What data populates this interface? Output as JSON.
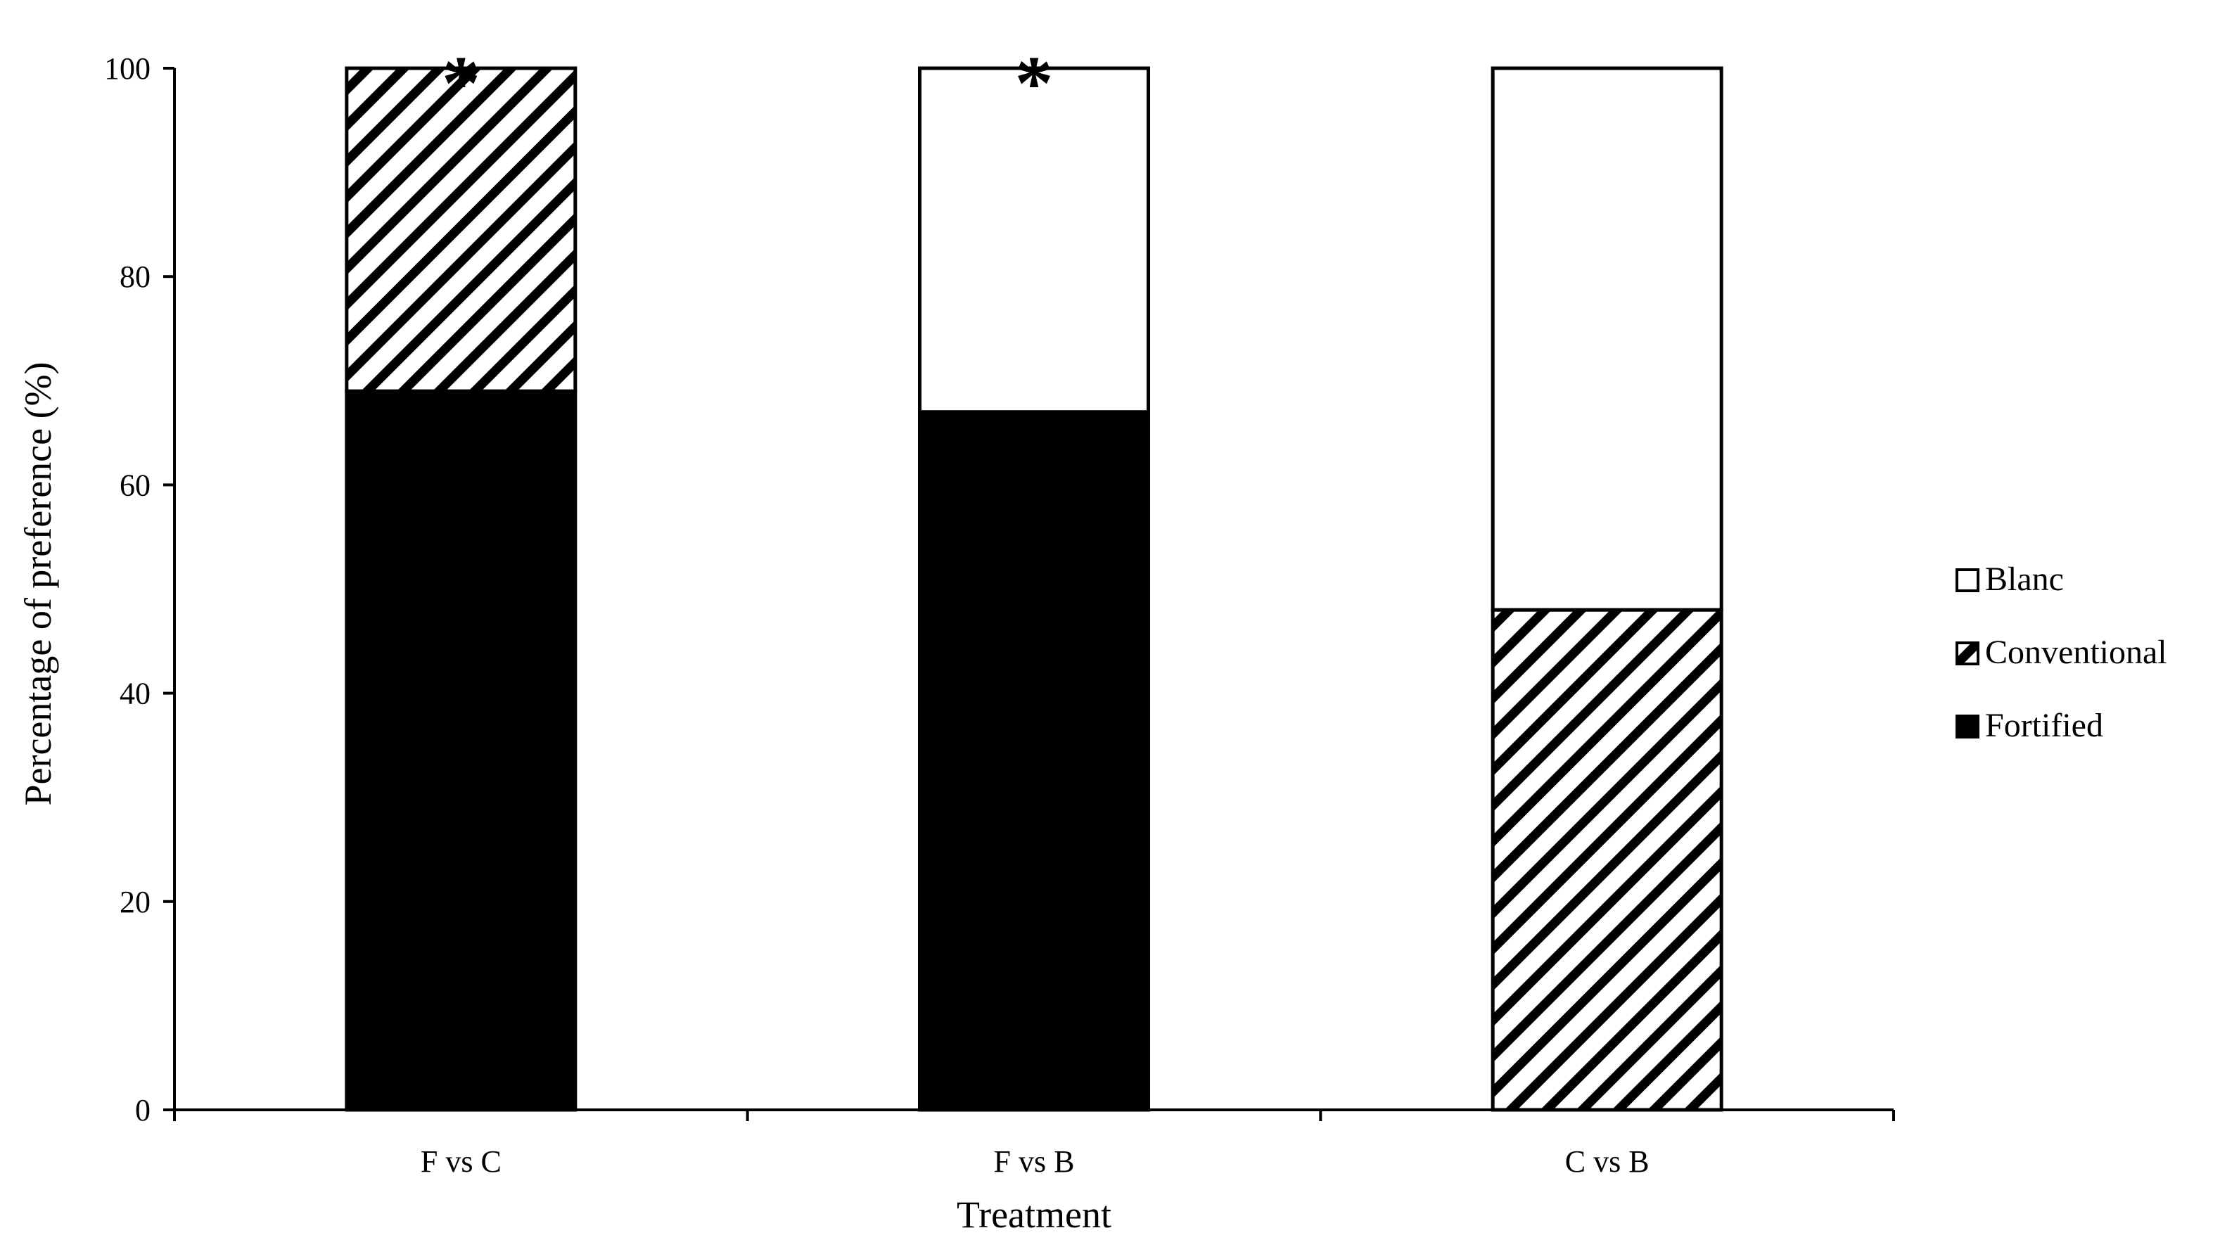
{
  "chart_data": {
    "type": "bar",
    "stacked": true,
    "xlabel": "Treatment",
    "ylabel": "Percentage of preference (%)",
    "ylim": [
      0,
      100
    ],
    "yticks": [
      "0",
      "20",
      "40",
      "60",
      "80",
      "100"
    ],
    "categories": [
      "F vs C",
      "F vs B",
      "C vs B"
    ],
    "series": [
      {
        "name": "Fortified",
        "values": [
          69,
          67,
          0
        ],
        "fill": "solid",
        "color": "#000000"
      },
      {
        "name": "Conventional",
        "values": [
          31,
          0,
          48
        ],
        "fill": "hatch",
        "color": "#000000"
      },
      {
        "name": "Blanc",
        "values": [
          0,
          33,
          52
        ],
        "fill": "empty",
        "color": "#ffffff"
      }
    ],
    "legend_order": [
      "Blanc",
      "Conventional",
      "Fortified"
    ],
    "legend_position": "right",
    "annotations": [
      "*",
      "*",
      ""
    ],
    "grid": false
  }
}
